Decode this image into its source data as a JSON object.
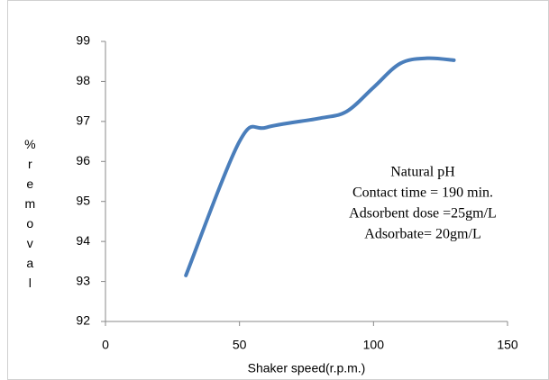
{
  "chart_data": {
    "type": "line",
    "x_label": "Shaker speed(r.p.m.)",
    "y_label": "%removal",
    "annotations": [
      "Natural pH",
      "Contact time = 190 min.",
      "Adsorbent dose =25gm/L",
      "Adsorbate= 20gm/L"
    ],
    "x": [
      30,
      50,
      60,
      80,
      90,
      100,
      110,
      120,
      130
    ],
    "series": [
      {
        "name": "removal",
        "color": "#4a7ebb",
        "values": [
          93.15,
          96.5,
          96.85,
          97.08,
          97.25,
          97.85,
          98.45,
          98.58,
          98.53
        ]
      }
    ],
    "xlim": [
      0,
      150
    ],
    "xticks": [
      0,
      50,
      100,
      150
    ],
    "ylim": [
      92,
      99
    ],
    "yticks": [
      92,
      93,
      94,
      95,
      96,
      97,
      98,
      99
    ]
  }
}
